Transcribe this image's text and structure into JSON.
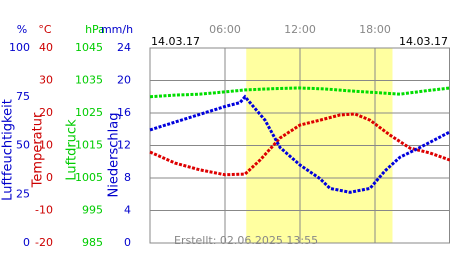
{
  "chart_data": {
    "type": "line",
    "date_left": "14.03.17",
    "date_right": "14.03.17",
    "footer": "Erstellt: 02.06.2025 13:55",
    "xlim": [
      0,
      24
    ],
    "xticks": [
      {
        "value": 6,
        "label": "06:00"
      },
      {
        "value": 12,
        "label": "12:00"
      },
      {
        "value": 18,
        "label": "18:00"
      }
    ],
    "daylight": [
      7.7,
      19.4
    ],
    "axes": [
      {
        "unit": "%",
        "label": "Luftfeuchtigkeit",
        "color": "#0000cc",
        "lim": [
          0,
          100
        ],
        "ticks": [
          0,
          25,
          50,
          75,
          100
        ]
      },
      {
        "unit": "°C",
        "label": "Temperatur",
        "color": "#cc0000",
        "lim": [
          -20,
          40
        ],
        "ticks": [
          -20,
          -10,
          0,
          10,
          20,
          30,
          40
        ]
      },
      {
        "unit": "hPa",
        "label": "Luftdruck",
        "color": "#00cc00",
        "lim": [
          985,
          1045
        ],
        "ticks": [
          985,
          995,
          1005,
          1015,
          1025,
          1035,
          1045
        ]
      },
      {
        "unit": "mm/h",
        "label": "Niederschlag",
        "color": "#0000cc",
        "lim": [
          0,
          24
        ],
        "ticks": [
          0,
          4,
          8,
          12,
          16,
          20,
          24
        ]
      }
    ],
    "series": [
      {
        "color": "#00dd00",
        "axis": 2,
        "x": [
          0,
          2,
          4,
          6,
          7.6,
          10,
          12,
          14,
          16,
          18,
          20,
          22,
          24
        ],
        "values": [
          1030,
          1030.5,
          1030.8,
          1031.5,
          1032.1,
          1032.5,
          1032.7,
          1032.4,
          1031.8,
          1031.3,
          1030.8,
          1031.8,
          1032.7
        ]
      },
      {
        "color": "#dd0000",
        "axis": 1,
        "x": [
          0,
          2,
          4,
          6,
          7.6,
          8.8,
          10.4,
          12,
          13.6,
          15.2,
          16.4,
          17.6,
          19.2,
          20.8,
          22.4,
          24
        ],
        "values": [
          8,
          4.6,
          2.5,
          1,
          1.2,
          5.5,
          12.3,
          16.3,
          17.8,
          19.4,
          19.7,
          17.8,
          13.2,
          9.2,
          7.7,
          5.5
        ]
      },
      {
        "color": "#0000dd",
        "axis": 0,
        "x": [
          0,
          2,
          4,
          6,
          7.2,
          7.6,
          9.2,
          10.4,
          12,
          13.6,
          14.4,
          16,
          17.6,
          18.8,
          20,
          21.6,
          22.8,
          24
        ],
        "values": [
          58,
          62,
          66,
          70,
          72,
          75,
          63,
          49,
          40,
          33,
          28,
          26,
          28,
          37,
          44,
          49,
          53,
          57
        ]
      }
    ]
  }
}
